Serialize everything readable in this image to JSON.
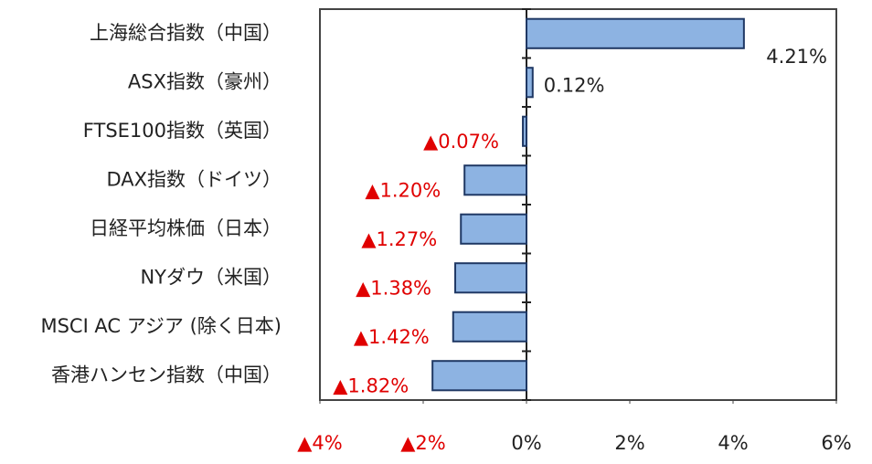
{
  "chart_data": {
    "type": "bar",
    "orientation": "horizontal",
    "categories": [
      "上海総合指数（中国）",
      "ASX指数（豪州）",
      "FTSE100指数（英国）",
      "DAX指数（ドイツ）",
      "日経平均株価（日本）",
      "NYダウ（米国）",
      "MSCI AC アジア (除く日本)",
      "香港ハンセン指数（中国）"
    ],
    "values": [
      4.21,
      0.12,
      -0.07,
      -1.2,
      -1.27,
      -1.38,
      -1.42,
      -1.82
    ],
    "value_labels": [
      "4.21%",
      "0.12%",
      "▲0.07%",
      "▲1.20%",
      "▲1.27%",
      "▲1.38%",
      "▲1.42%",
      "▲1.82%"
    ],
    "color": "#8db3e2",
    "xlim": [
      -4,
      6
    ],
    "xticks": [
      {
        "value": -4,
        "label": "▲4%"
      },
      {
        "value": -2,
        "label": "▲2%"
      },
      {
        "value": 0,
        "label": "0%"
      },
      {
        "value": 2,
        "label": "2%"
      },
      {
        "value": 4,
        "label": "4%"
      },
      {
        "value": 6,
        "label": "6%"
      }
    ],
    "grid": false
  }
}
